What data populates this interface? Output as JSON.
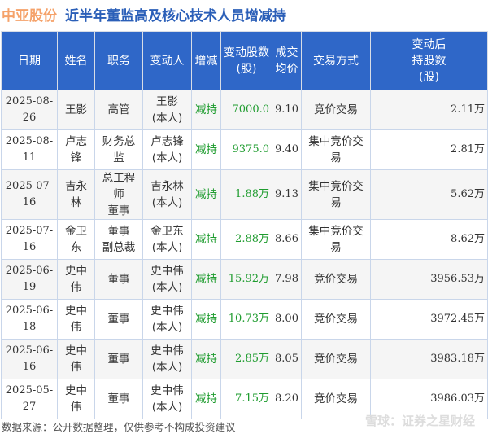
{
  "title": {
    "company": "中亚股份",
    "text": "近半年董监高及核心技术人员增减持"
  },
  "headers": [
    "日期",
    "姓名",
    "职务",
    "变动人",
    "增减",
    "变动股数(股)",
    "成交均价",
    "交易方式",
    "变动后持股数(股)"
  ],
  "header_lines": [
    [
      "日期"
    ],
    [
      "姓名"
    ],
    [
      "职务"
    ],
    [
      "变动人"
    ],
    [
      "增减"
    ],
    [
      "变动股数",
      "(股)"
    ],
    [
      "成交",
      "均价"
    ],
    [
      "交易方式"
    ],
    [
      "变动后",
      "持股数",
      "(股)"
    ]
  ],
  "rows": [
    {
      "date": "2025-08-26",
      "name": "王影",
      "role": [
        "高管"
      ],
      "person": [
        "王影",
        "(本人)"
      ],
      "dir": "减持",
      "shares": "7000.0",
      "price": "9.10",
      "method": "竞价交易",
      "after": "2.11万"
    },
    {
      "date": "2025-08-11",
      "name": "卢志锋",
      "role": [
        "财务总监"
      ],
      "person": [
        "卢志锋",
        "(本人)"
      ],
      "dir": "减持",
      "shares": "9375.0",
      "price": "9.40",
      "method": "集中竞价交易",
      "after": "2.81万"
    },
    {
      "date": "2025-07-16",
      "name": "吉永林",
      "role": [
        "总工程师",
        "董事"
      ],
      "person": [
        "吉永林",
        "(本人)"
      ],
      "dir": "减持",
      "shares": "1.88万",
      "price": "9.13",
      "method": "集中竞价交易",
      "after": "5.62万"
    },
    {
      "date": "2025-07-16",
      "name": "金卫东",
      "role": [
        "董事",
        "副总裁"
      ],
      "person": [
        "金卫东",
        "(本人)"
      ],
      "dir": "减持",
      "shares": "2.88万",
      "price": "8.66",
      "method": "集中竞价交易",
      "after": "8.62万"
    },
    {
      "date": "2025-06-19",
      "name": "史中伟",
      "role": [
        "董事"
      ],
      "person": [
        "史中伟",
        "(本人)"
      ],
      "dir": "减持",
      "shares": "15.92万",
      "price": "7.98",
      "method": "竞价交易",
      "after": "3956.53万"
    },
    {
      "date": "2025-06-18",
      "name": "史中伟",
      "role": [
        "董事"
      ],
      "person": [
        "史中伟",
        "(本人)"
      ],
      "dir": "减持",
      "shares": "10.73万",
      "price": "8.00",
      "method": "竞价交易",
      "after": "3972.45万"
    },
    {
      "date": "2025-06-16",
      "name": "史中伟",
      "role": [
        "董事"
      ],
      "person": [
        "史中伟",
        "(本人)"
      ],
      "dir": "减持",
      "shares": "2.85万",
      "price": "8.05",
      "method": "竞价交易",
      "after": "3983.18万"
    },
    {
      "date": "2025-05-27",
      "name": "史中伟",
      "role": [
        "董事"
      ],
      "person": [
        "史中伟",
        "(本人)"
      ],
      "dir": "减持",
      "shares": "7.15万",
      "price": "8.20",
      "method": "竞价交易",
      "after": "3986.03万"
    }
  ],
  "footer": "数据来源：公开数据整理，仅供参考不构成投资建议",
  "watermark": "雪球：证券之星财经",
  "colors": {
    "header_bg": "#2f67c8",
    "company": "#f5a26a",
    "title": "#2b5fb8",
    "decrease": "#1f9c2f"
  }
}
